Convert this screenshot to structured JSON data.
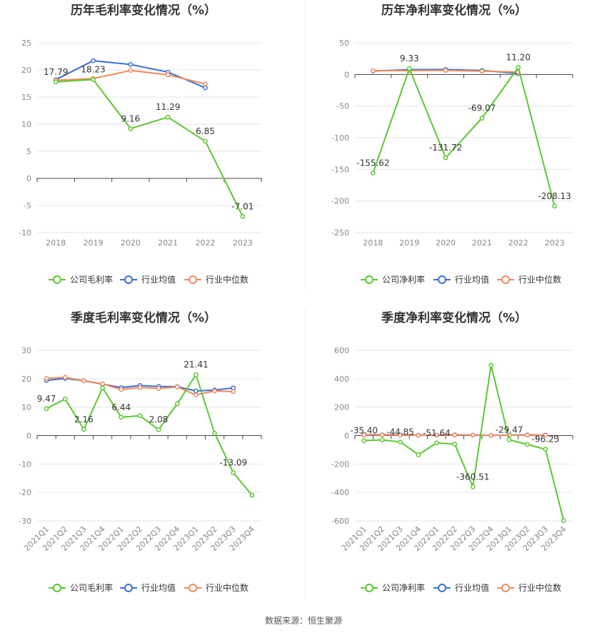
{
  "source_label": "数据来源：恒生聚源",
  "colors": {
    "company": "#5ac832",
    "industry_avg": "#3b6fd8",
    "industry_median": "#f08a5d",
    "grid": "#e6e6e6",
    "axis": "#333333"
  },
  "legend_icons": [
    "circle-line-icon",
    "circle-line-icon",
    "circle-line-icon"
  ],
  "chart_data": [
    {
      "type": "line",
      "title": "历年毛利率变化情况（%）",
      "categories": [
        "2018",
        "2019",
        "2020",
        "2021",
        "2022",
        "2023"
      ],
      "ylim": [
        -10,
        25
      ],
      "yticks": [
        25,
        20,
        15,
        10,
        5,
        0,
        -5,
        -10
      ],
      "grid": true,
      "legend_position": "bottom",
      "series": [
        {
          "name": "公司毛利率",
          "values": [
            17.79,
            18.23,
            9.16,
            11.29,
            6.85,
            -7.01
          ],
          "labels": [
            "17.79",
            "18.23",
            "9.16",
            "11.29",
            "6.85",
            "-7.01"
          ]
        },
        {
          "name": "行业均值",
          "values": [
            18.2,
            21.7,
            21.0,
            19.6,
            16.7,
            null
          ],
          "labels": []
        },
        {
          "name": "行业中位数",
          "values": [
            18.1,
            18.4,
            19.9,
            19.1,
            17.4,
            null
          ],
          "labels": []
        }
      ]
    },
    {
      "type": "line",
      "title": "历年净利率变化情况（%）",
      "categories": [
        "2018",
        "2019",
        "2020",
        "2021",
        "2022",
        "2023"
      ],
      "ylim": [
        -250,
        50
      ],
      "yticks": [
        50,
        0,
        -50,
        -100,
        -150,
        -200,
        -250
      ],
      "grid": true,
      "legend_position": "bottom",
      "series": [
        {
          "name": "公司净利率",
          "values": [
            -155.62,
            9.33,
            -131.72,
            -69.07,
            11.2,
            -208.13
          ],
          "labels": [
            "-155.62",
            "9.33",
            "-131.72",
            "-69.07",
            "11.20",
            "-208.13"
          ]
        },
        {
          "name": "行业均值",
          "values": [
            5.5,
            7.5,
            7.8,
            6.3,
            1.5,
            null
          ],
          "labels": []
        },
        {
          "name": "行业中位数",
          "values": [
            5.8,
            6.2,
            6.5,
            5.2,
            3.8,
            null
          ],
          "labels": []
        }
      ]
    },
    {
      "type": "line",
      "title": "季度毛利率变化情况（%）",
      "categories": [
        "2021Q1",
        "2021Q2",
        "2021Q3",
        "2021Q4",
        "2022Q1",
        "2022Q2",
        "2022Q3",
        "2022Q4",
        "2023Q1",
        "2023Q2",
        "2023Q3",
        "2023Q4"
      ],
      "ylim": [
        -30,
        30
      ],
      "yticks": [
        30,
        20,
        10,
        0,
        -10,
        -20,
        -30
      ],
      "grid": true,
      "legend_position": "bottom",
      "series": [
        {
          "name": "公司毛利率",
          "values": [
            9.47,
            12.9,
            2.16,
            16.8,
            6.44,
            7.0,
            2.08,
            11.2,
            21.41,
            0.8,
            -13.09,
            -21.0
          ],
          "labels": [
            "9.47",
            "",
            "2.16",
            "",
            "6.44",
            "",
            "2.08",
            "",
            "21.41",
            "",
            "-13.09",
            ""
          ]
        },
        {
          "name": "行业均值",
          "values": [
            19.4,
            20.1,
            19.3,
            18.1,
            16.9,
            17.6,
            17.3,
            17.2,
            15.7,
            16.0,
            16.8,
            null
          ],
          "labels": []
        },
        {
          "name": "行业中位数",
          "values": [
            20.1,
            20.5,
            19.3,
            18.2,
            16.2,
            16.9,
            16.6,
            17.1,
            14.3,
            15.7,
            15.5,
            null
          ],
          "labels": []
        }
      ]
    },
    {
      "type": "line",
      "title": "季度净利率变化情况（%）",
      "categories": [
        "2021Q1",
        "2021Q2",
        "2021Q3",
        "2021Q4",
        "2022Q1",
        "2022Q2",
        "2022Q3",
        "2022Q4",
        "2023Q1",
        "2023Q2",
        "2023Q3",
        "2023Q4"
      ],
      "ylim": [
        -600,
        600
      ],
      "yticks": [
        600,
        400,
        200,
        0,
        -200,
        -400,
        -600
      ],
      "grid": true,
      "legend_position": "bottom",
      "series": [
        {
          "name": "公司净利率",
          "values": [
            -35.4,
            -30,
            -44.85,
            -135,
            -51.64,
            -60,
            -360.51,
            495,
            -29.47,
            -62,
            -96.23,
            -598
          ],
          "labels": [
            "-35.40",
            "",
            "-44.85",
            "",
            "-51.64",
            "",
            "-360.51",
            "",
            "-29.47",
            "",
            "-96.23",
            ""
          ]
        },
        {
          "name": "行业均值",
          "values": [
            5,
            6,
            5,
            3,
            4,
            5,
            4,
            2,
            3,
            5,
            3,
            null
          ],
          "labels": []
        },
        {
          "name": "行业中位数",
          "values": [
            4,
            5,
            4,
            2,
            3,
            4,
            4,
            2,
            2,
            4,
            2,
            null
          ],
          "labels": []
        }
      ]
    }
  ]
}
